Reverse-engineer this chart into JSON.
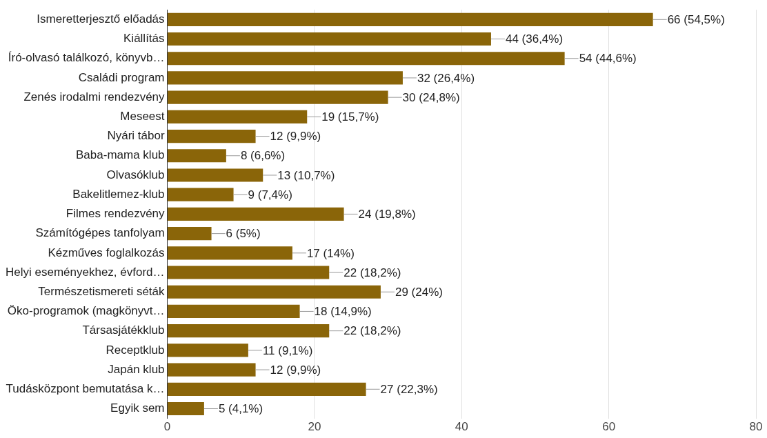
{
  "chart_data": {
    "type": "bar",
    "orientation": "horizontal",
    "categories": [
      "Ismeretterjesztő előadás",
      "Kiállítás",
      "Író-olvasó találkozó, könyvb…",
      "Családi program",
      "Zenés irodalmi rendezvény",
      "Meseest",
      "Nyári tábor",
      "Baba-mama klub",
      "Olvasóklub",
      "Bakelitlemez-klub",
      "Filmes rendezvény",
      "Számítógépes tanfolyam",
      "Kézműves foglalkozás",
      "Helyi eseményekhez, évford…",
      "Természetismereti séták",
      "Öko-programok (magkönyvt…",
      "Társasjátékklub",
      "Receptklub",
      "Japán klub",
      "Tudásközpont bemutatása k…",
      "Egyik sem"
    ],
    "values": [
      66,
      44,
      54,
      32,
      30,
      19,
      12,
      8,
      13,
      9,
      24,
      6,
      17,
      22,
      29,
      18,
      22,
      11,
      12,
      27,
      5
    ],
    "value_labels": [
      "66 (54,5%)",
      "44 (36,4%)",
      "54 (44,6%)",
      "32 (26,4%)",
      "30 (24,8%)",
      "19 (15,7%)",
      "12 (9,9%)",
      "8 (6,6%)",
      "13 (10,7%)",
      "9 (7,4%)",
      "24 (19,8%)",
      "6 (5%)",
      "17 (14%)",
      "22 (18,2%)",
      "29 (24%)",
      "18 (14,9%)",
      "22 (18,2%)",
      "11 (9,1%)",
      "12 (9,9%)",
      "27 (22,3%)",
      "5 (4,1%)"
    ],
    "color": "#8a6509",
    "xlim": [
      0,
      80
    ],
    "xticks": [
      0,
      20,
      40,
      60,
      80
    ],
    "grid": "x",
    "legend": false
  }
}
